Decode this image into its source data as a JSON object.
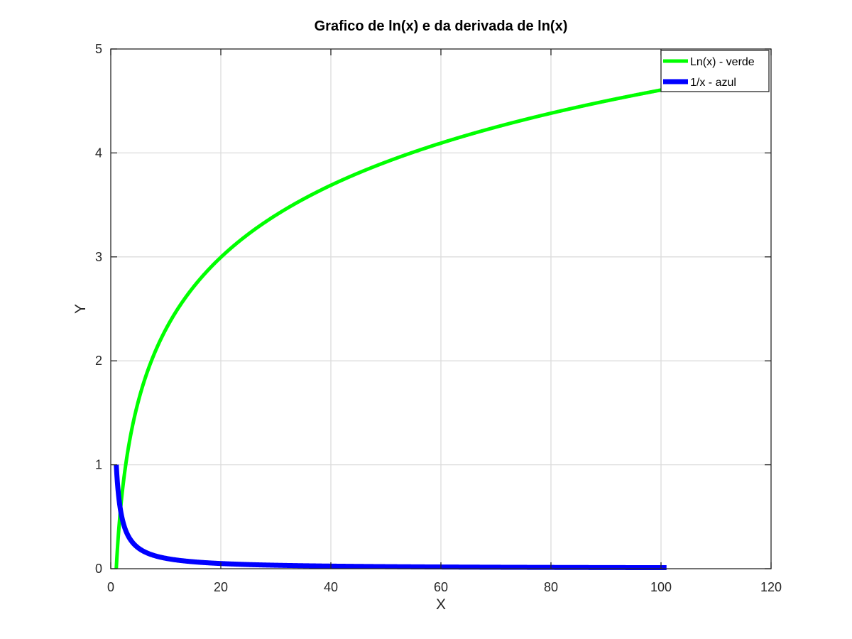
{
  "chart_data": {
    "type": "line",
    "title": "Grafico de ln(x) e da derivada de ln(x)",
    "xlabel": "X",
    "ylabel": "Y",
    "xlim": [
      0,
      120
    ],
    "ylim": [
      0,
      5
    ],
    "xticks": [
      0,
      20,
      40,
      60,
      80,
      100,
      120
    ],
    "yticks": [
      0,
      1,
      2,
      3,
      4,
      5
    ],
    "grid": true,
    "legend_position": "top-right",
    "series": [
      {
        "name": "Ln(x) - verde",
        "color": "#00ff00",
        "function": "ln(x)",
        "x_range": [
          1,
          101
        ],
        "sample_points": [
          [
            1,
            0
          ],
          [
            2,
            0.693
          ],
          [
            5,
            1.609
          ],
          [
            10,
            2.303
          ],
          [
            20,
            2.996
          ],
          [
            40,
            3.689
          ],
          [
            60,
            4.094
          ],
          [
            80,
            4.382
          ],
          [
            101,
            4.615
          ]
        ]
      },
      {
        "name": "1/x - azul",
        "color": "#0000ff",
        "function": "1/x",
        "x_range": [
          1,
          101
        ],
        "sample_points": [
          [
            1,
            1
          ],
          [
            2,
            0.5
          ],
          [
            5,
            0.2
          ],
          [
            10,
            0.1
          ],
          [
            20,
            0.05
          ],
          [
            40,
            0.025
          ],
          [
            60,
            0.0167
          ],
          [
            80,
            0.0125
          ],
          [
            101,
            0.0099
          ]
        ]
      }
    ]
  }
}
